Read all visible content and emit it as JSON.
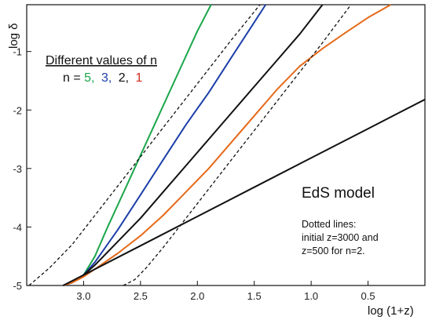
{
  "chart_data": {
    "type": "line",
    "xlabel": "log (1+z)",
    "ylabel": "log δ",
    "xlim": [
      3.5,
      0.0
    ],
    "ylim": [
      -5.0,
      -0.2
    ],
    "x_reversed": true,
    "x_ticks": [
      3.0,
      2.5,
      2.0,
      1.5,
      1.0,
      0.5
    ],
    "x_tick_labels": [
      "3.0",
      "2.5",
      "2.0",
      "1.5",
      "1.0",
      "0.5"
    ],
    "y_ticks": [
      -5,
      -4,
      -3,
      -2,
      -1
    ],
    "y_tick_labels": [
      "-5",
      "-4",
      "-3",
      "-2",
      "-1"
    ],
    "grid": false,
    "legend": {
      "title": "Different values of n",
      "prefix": "n = ",
      "entries": [
        {
          "text": "5,",
          "color": "#1aa64a"
        },
        {
          "text": "3,",
          "color": "#1c3fa8"
        },
        {
          "text": "2,",
          "color": "#111111"
        },
        {
          "text": "1",
          "color": "#d42a1e"
        }
      ]
    },
    "annotations": {
      "model": "EdS model",
      "notes": [
        "Dotted lines:",
        "initial z=3000  and",
        "z=500 for n=2."
      ]
    },
    "series": [
      {
        "color": "#1aa64a",
        "style": "solid",
        "points": [
          [
            3.18,
            -5.0
          ],
          [
            3.1,
            -4.95
          ],
          [
            3.0,
            -4.82
          ],
          [
            2.9,
            -4.5
          ],
          [
            2.8,
            -4.05
          ],
          [
            2.6,
            -3.2
          ],
          [
            2.4,
            -2.35
          ],
          [
            2.2,
            -1.5
          ],
          [
            2.0,
            -0.65
          ],
          [
            1.88,
            -0.2
          ]
        ]
      },
      {
        "color": "#1c3fa8",
        "style": "solid",
        "points": [
          [
            3.18,
            -5.0
          ],
          [
            3.1,
            -4.95
          ],
          [
            3.0,
            -4.82
          ],
          [
            2.9,
            -4.6
          ],
          [
            2.7,
            -4.05
          ],
          [
            2.5,
            -3.45
          ],
          [
            2.3,
            -2.85
          ],
          [
            2.1,
            -2.25
          ],
          [
            1.9,
            -1.7
          ],
          [
            1.7,
            -1.1
          ],
          [
            1.5,
            -0.5
          ],
          [
            1.4,
            -0.2
          ]
        ]
      },
      {
        "color": "#111111",
        "style": "solid",
        "points": [
          [
            3.18,
            -5.0
          ],
          [
            3.1,
            -4.95
          ],
          [
            3.0,
            -4.82
          ],
          [
            2.9,
            -4.65
          ],
          [
            2.7,
            -4.25
          ],
          [
            2.5,
            -3.85
          ],
          [
            2.3,
            -3.4
          ],
          [
            2.1,
            -2.95
          ],
          [
            1.9,
            -2.5
          ],
          [
            1.7,
            -2.05
          ],
          [
            1.5,
            -1.6
          ],
          [
            1.3,
            -1.15
          ],
          [
            1.1,
            -0.7
          ],
          [
            0.9,
            -0.2
          ]
        ]
      },
      {
        "color": "#e56a1a",
        "style": "solid",
        "points": [
          [
            3.18,
            -5.0
          ],
          [
            3.1,
            -4.95
          ],
          [
            3.0,
            -4.85
          ],
          [
            2.9,
            -4.72
          ],
          [
            2.7,
            -4.45
          ],
          [
            2.5,
            -4.15
          ],
          [
            2.3,
            -3.8
          ],
          [
            2.1,
            -3.4
          ],
          [
            1.9,
            -3.0
          ],
          [
            1.7,
            -2.55
          ],
          [
            1.5,
            -2.1
          ],
          [
            1.3,
            -1.65
          ],
          [
            1.1,
            -1.25
          ],
          [
            0.9,
            -0.95
          ],
          [
            0.7,
            -0.68
          ],
          [
            0.5,
            -0.42
          ],
          [
            0.3,
            -0.2
          ]
        ]
      },
      {
        "color": "#111111",
        "style": "solid",
        "points": [
          [
            3.18,
            -5.0
          ],
          [
            3.0,
            -4.82
          ],
          [
            2.5,
            -4.32
          ],
          [
            2.0,
            -3.82
          ],
          [
            1.5,
            -3.32
          ],
          [
            1.0,
            -2.82
          ],
          [
            0.5,
            -2.32
          ],
          [
            0.0,
            -1.82
          ]
        ]
      },
      {
        "color": "#111111",
        "style": "dotted",
        "points": [
          [
            3.48,
            -5.0
          ],
          [
            3.3,
            -4.7
          ],
          [
            3.1,
            -4.3
          ],
          [
            2.9,
            -3.8
          ],
          [
            2.7,
            -3.3
          ],
          [
            2.5,
            -2.8
          ],
          [
            2.3,
            -2.3
          ],
          [
            2.1,
            -1.8
          ],
          [
            1.9,
            -1.3
          ],
          [
            1.7,
            -0.8
          ],
          [
            1.45,
            -0.2
          ]
        ]
      },
      {
        "color": "#111111",
        "style": "dotted",
        "points": [
          [
            2.65,
            -5.0
          ],
          [
            2.55,
            -4.9
          ],
          [
            2.45,
            -4.7
          ],
          [
            2.3,
            -4.35
          ],
          [
            2.1,
            -3.85
          ],
          [
            1.9,
            -3.35
          ],
          [
            1.7,
            -2.85
          ],
          [
            1.5,
            -2.35
          ],
          [
            1.3,
            -1.85
          ],
          [
            1.1,
            -1.35
          ],
          [
            0.9,
            -0.85
          ],
          [
            0.65,
            -0.2
          ]
        ]
      }
    ]
  }
}
